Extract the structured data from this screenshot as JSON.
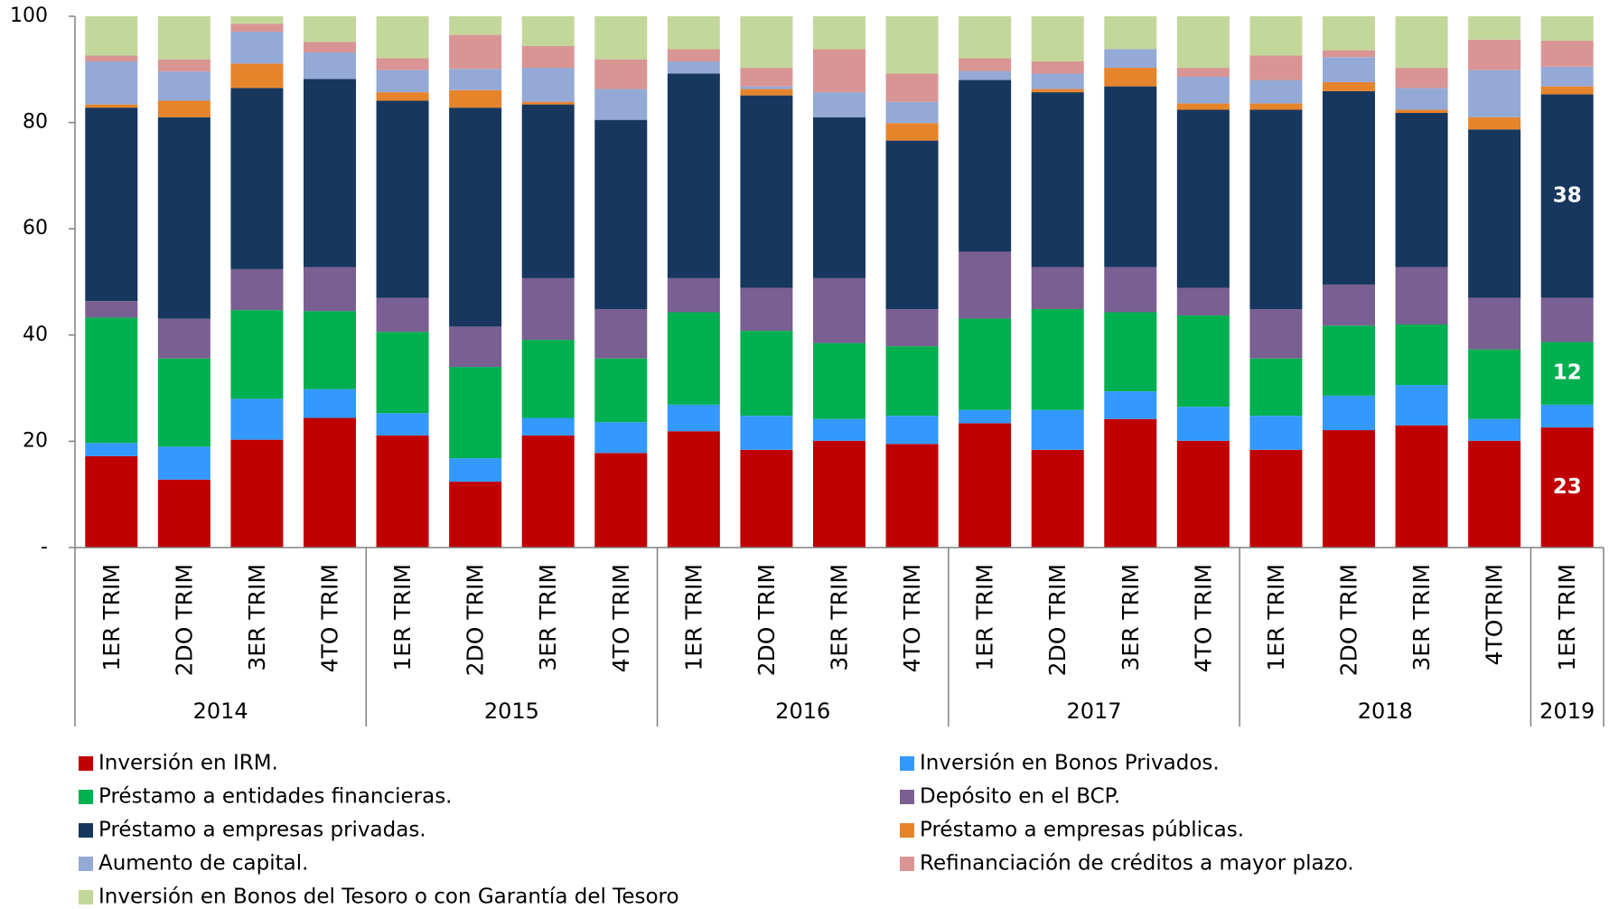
{
  "chart_data": {
    "type": "stacked_bar",
    "categories": [
      "1ER TRIM",
      "2DO TRIM",
      "3ER TRIM",
      "4TO TRIM",
      "1ER TRIM",
      "2DO TRIM",
      "3ER TRIM",
      "4TO TRIM",
      "1ER TRIM",
      "2DO TRIM",
      "3ER TRIM",
      "4TO TRIM",
      "1ER TRIM",
      "2DO TRIM",
      "3ER TRIM",
      "4TO TRIM",
      "1ER TRIM",
      "2DO TRIM",
      "3ER TRIM",
      "4TOTRIM",
      "1ER TRIM"
    ],
    "groups": [
      {
        "label": "2014",
        "count": 4
      },
      {
        "label": "2015",
        "count": 4
      },
      {
        "label": "2016",
        "count": 4
      },
      {
        "label": "2017",
        "count": 4
      },
      {
        "label": "2018",
        "count": 4
      },
      {
        "label": "2019",
        "count": 1
      }
    ],
    "ylim": [
      0,
      100
    ],
    "yticks": [
      {
        "value": 0,
        "label": "-"
      },
      20,
      40,
      60,
      80,
      100
    ],
    "grid": false,
    "series": [
      {
        "name": "Inversión en IRM.",
        "color": "#c00000",
        "values": [
          17.2,
          12.8,
          20.3,
          24.4,
          21.1,
          12.4,
          21.1,
          17.8,
          21.9,
          18.4,
          20.1,
          19.5,
          23.4,
          18.4,
          24.2,
          20.1,
          18.4,
          22.1,
          23.0,
          20.1,
          22.6
        ],
        "value_labels": [
          null,
          null,
          null,
          null,
          null,
          null,
          null,
          null,
          null,
          null,
          null,
          null,
          null,
          null,
          null,
          null,
          null,
          null,
          null,
          null,
          "23"
        ]
      },
      {
        "name": "Inversión en Bonos Privados.",
        "color": "#3399ff",
        "values": [
          2.5,
          6.2,
          7.7,
          5.4,
          4.2,
          4.4,
          3.3,
          5.8,
          5.0,
          6.4,
          4.1,
          5.3,
          2.5,
          7.5,
          5.2,
          6.4,
          6.4,
          6.5,
          7.6,
          4.1,
          4.3
        ]
      },
      {
        "name": "Préstamo a entidades financieras.",
        "color": "#00b050",
        "values": [
          23.6,
          16.6,
          16.7,
          14.7,
          15.3,
          17.2,
          14.7,
          12.0,
          17.4,
          16.0,
          14.3,
          13.1,
          17.2,
          19.0,
          14.9,
          17.2,
          10.8,
          13.2,
          11.4,
          13.1,
          11.8
        ],
        "value_labels": [
          null,
          null,
          null,
          null,
          null,
          null,
          null,
          null,
          null,
          null,
          null,
          null,
          null,
          null,
          null,
          null,
          null,
          null,
          null,
          null,
          "12"
        ]
      },
      {
        "name": "Depósito en el BCP.",
        "color": "#7a5f92",
        "values": [
          3.1,
          7.5,
          7.7,
          8.3,
          6.4,
          7.6,
          11.6,
          9.3,
          6.4,
          8.1,
          12.2,
          7.0,
          12.6,
          7.9,
          8.5,
          5.2,
          9.3,
          7.7,
          10.8,
          9.7,
          8.3
        ]
      },
      {
        "name": "Préstamo a empresas privadas.",
        "color": "#17375e",
        "values": [
          36.4,
          37.9,
          34.1,
          35.4,
          37.1,
          41.2,
          32.7,
          35.6,
          38.5,
          36.2,
          30.3,
          31.7,
          32.3,
          32.9,
          34.0,
          33.5,
          37.5,
          36.4,
          29.0,
          31.7,
          38.3
        ],
        "value_labels": [
          null,
          null,
          null,
          null,
          null,
          null,
          null,
          null,
          null,
          null,
          null,
          null,
          null,
          null,
          null,
          null,
          null,
          null,
          null,
          null,
          "38"
        ]
      },
      {
        "name": "Préstamo a empresas públicas.",
        "color": "#e6842c",
        "values": [
          0.6,
          3.1,
          4.6,
          0,
          1.6,
          3.3,
          0.5,
          0,
          0,
          1.2,
          0,
          3.3,
          0,
          0.6,
          3.5,
          1.2,
          1.2,
          1.7,
          0.6,
          2.3,
          1.5
        ]
      },
      {
        "name": "Aumento de capital.",
        "color": "#95a9d6",
        "values": [
          8.1,
          5.5,
          6.0,
          5.0,
          4.2,
          4.0,
          6.4,
          5.8,
          2.3,
          0.5,
          4.7,
          4.0,
          1.7,
          2.9,
          3.5,
          5.0,
          4.4,
          4.7,
          4.1,
          8.9,
          3.7
        ]
      },
      {
        "name": "Refinanciación de créditos a mayor plazo.",
        "color": "#d99594",
        "values": [
          1.1,
          2.3,
          1.5,
          2.0,
          2.2,
          6.4,
          4.1,
          5.6,
          2.3,
          3.5,
          8.1,
          5.3,
          2.4,
          2.3,
          0,
          1.7,
          4.6,
          1.3,
          3.8,
          5.7,
          4.9
        ]
      },
      {
        "name": "Inversión en Bonos del Tesoro o con Garantía del Tesoro",
        "color": "#c4d79b",
        "values": [
          7.4,
          8.1,
          1.4,
          4.8,
          7.9,
          3.5,
          5.6,
          8.1,
          6.2,
          9.7,
          6.2,
          10.8,
          7.9,
          8.5,
          6.2,
          9.7,
          7.4,
          6.4,
          9.7,
          4.4,
          4.6
        ]
      }
    ]
  }
}
